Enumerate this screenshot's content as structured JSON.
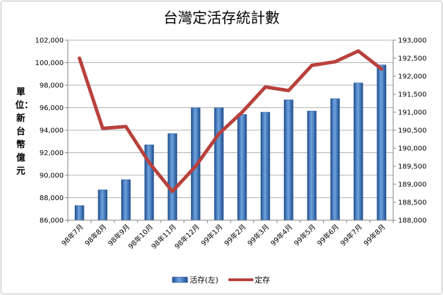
{
  "chart_data": {
    "type": "bar",
    "title": "台灣定活存統計數",
    "ylabel": "單位：新台幣億元",
    "categories": [
      "98年7月",
      "98年8月",
      "98年9月",
      "98年10月",
      "98年11月",
      "98年12月",
      "99年1月",
      "99年2月",
      "99年3月",
      "99年4月",
      "99年5月",
      "99年6月",
      "99年7月",
      "99年8月"
    ],
    "series": [
      {
        "name": "活存(左)",
        "type": "bar",
        "axis": "left",
        "color": "#2e6cb8",
        "values": [
          87300,
          88700,
          89600,
          92700,
          93700,
          96000,
          96000,
          95400,
          95600,
          96700,
          95700,
          96800,
          98200,
          99800
        ]
      },
      {
        "name": "定存",
        "type": "line",
        "axis": "right",
        "color": "#b8413d",
        "values": [
          192500,
          190550,
          190600,
          189600,
          188800,
          189500,
          190400,
          191000,
          191700,
          191600,
          192300,
          192400,
          192700,
          192200
        ]
      }
    ],
    "ylim_left": [
      86000,
      102000
    ],
    "ylim_right": [
      188000,
      193000
    ],
    "left_ticks": [
      "86,000",
      "88,000",
      "90,000",
      "92,000",
      "94,000",
      "96,000",
      "98,000",
      "100,000",
      "102,000"
    ],
    "right_ticks": [
      "188,000",
      "188,500",
      "189,000",
      "189,500",
      "190,000",
      "190,500",
      "191,000",
      "191,500",
      "192,000",
      "192,500",
      "193,000"
    ],
    "grid": true,
    "legend": "bottom"
  }
}
